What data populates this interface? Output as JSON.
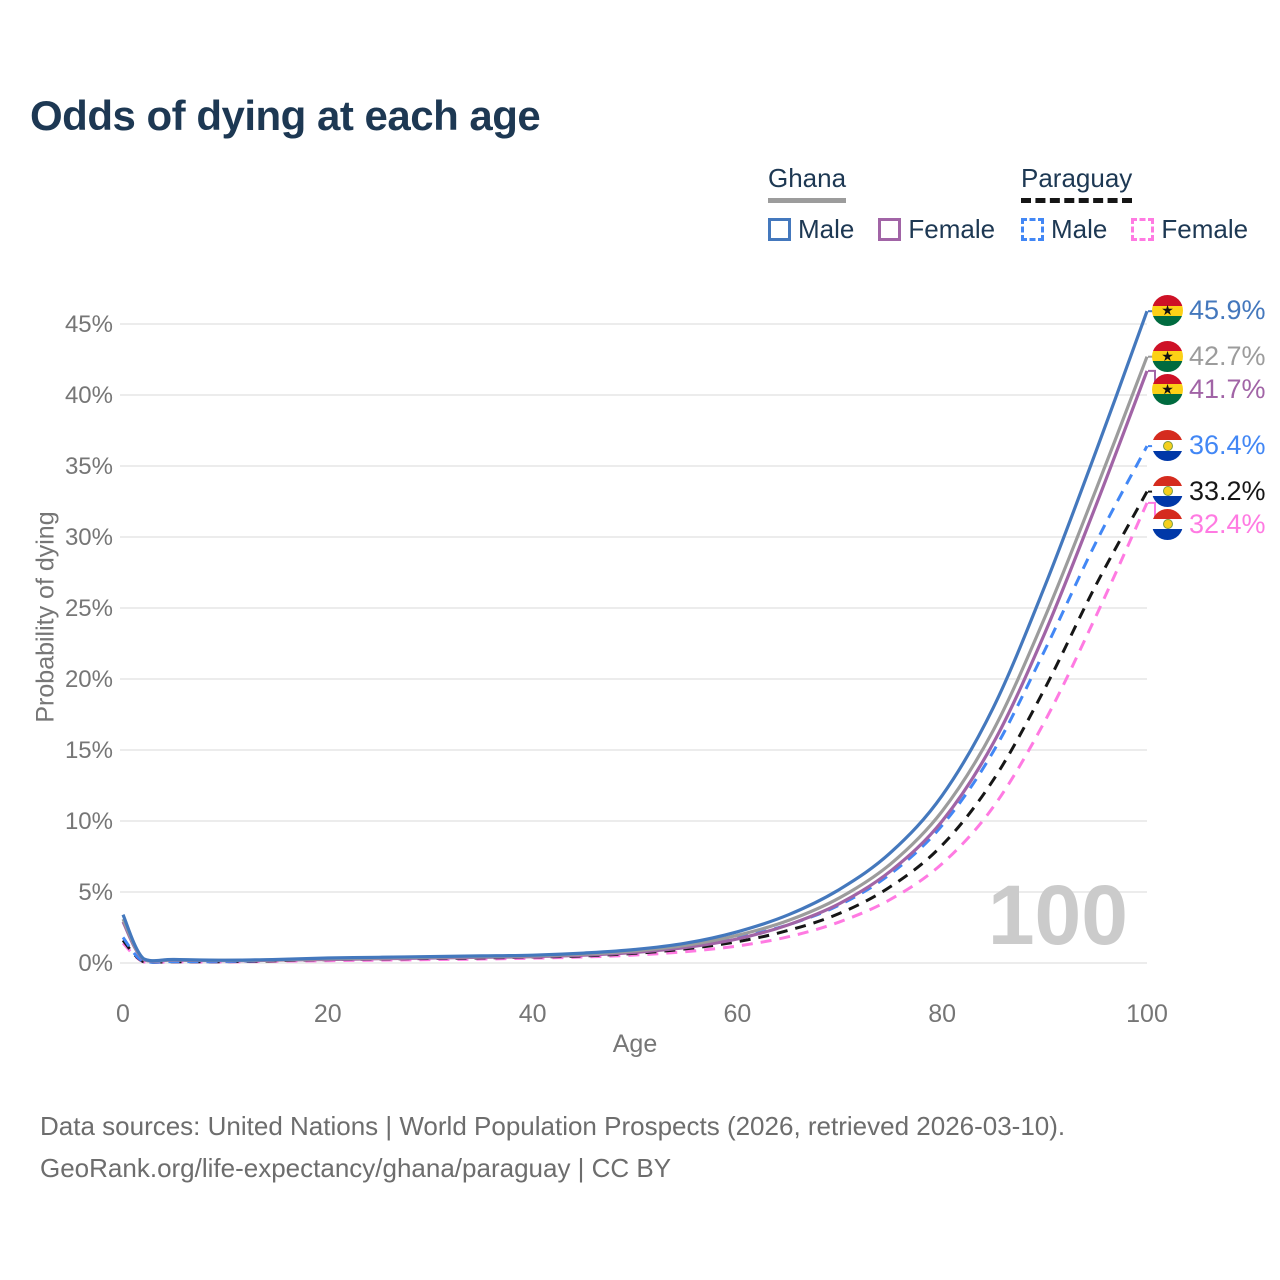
{
  "title": "Odds of dying at each age",
  "watermark": "100",
  "legend": {
    "groups": [
      {
        "country": "Ghana",
        "line_style": "solid",
        "line_color": "#9c9c9c",
        "items": [
          {
            "label": "Male",
            "color": "#4478bd",
            "dashed": false
          },
          {
            "label": "Female",
            "color": "#a164a6",
            "dashed": false
          }
        ]
      },
      {
        "country": "Paraguay",
        "line_style": "dashed",
        "line_color": "#161616",
        "items": [
          {
            "label": "Male",
            "color": "#4287f5",
            "dashed": true
          },
          {
            "label": "Female",
            "color": "#ff7ae2",
            "dashed": true
          }
        ]
      }
    ]
  },
  "axes": {
    "x_label": "Age",
    "y_label": "Probability of dying",
    "x_ticks": [
      "0",
      "20",
      "40",
      "60",
      "80",
      "100"
    ],
    "y_ticks": [
      "0%",
      "5%",
      "10%",
      "15%",
      "20%",
      "25%",
      "30%",
      "35%",
      "40%",
      "45%"
    ]
  },
  "footer": {
    "line1": "Data sources: United Nations | World Population Prospects (2026, retrieved 2026-03-10).",
    "line2": "GeoRank.org/life-expectancy/ghana/paraguay | CC BY"
  },
  "chart_data": {
    "type": "line",
    "title": "Odds of dying at each age",
    "xlabel": "Age",
    "ylabel": "Probability of dying",
    "xlim": [
      0,
      100
    ],
    "ylim": [
      0,
      46
    ],
    "grid": true,
    "legend_position": "top-right",
    "x": [
      0,
      2,
      5,
      10,
      15,
      20,
      25,
      30,
      35,
      40,
      45,
      50,
      55,
      60,
      65,
      70,
      75,
      80,
      85,
      90,
      95,
      100
    ],
    "series": [
      {
        "name": "Ghana Male",
        "country": "Ghana",
        "sex": "Male",
        "color": "#4478bd",
        "dash": "solid",
        "flag": "ghana",
        "end_label": "45.9%",
        "end_value": 45.9,
        "values": [
          3.4,
          0.3,
          0.25,
          0.2,
          0.25,
          0.35,
          0.4,
          0.45,
          0.5,
          0.55,
          0.7,
          0.95,
          1.4,
          2.2,
          3.4,
          5.2,
          7.8,
          11.8,
          18.0,
          26.5,
          36.0,
          45.9
        ]
      },
      {
        "name": "Ghana",
        "country": "Ghana",
        "sex": "Both",
        "color": "#9c9c9c",
        "dash": "solid",
        "flag": "ghana",
        "end_label": "42.7%",
        "end_value": 42.7,
        "values": [
          3.1,
          0.28,
          0.22,
          0.18,
          0.22,
          0.3,
          0.35,
          0.4,
          0.45,
          0.5,
          0.62,
          0.85,
          1.25,
          1.95,
          3.0,
          4.6,
          7.0,
          10.7,
          16.4,
          24.3,
          33.3,
          42.7
        ]
      },
      {
        "name": "Ghana Female",
        "country": "Ghana",
        "sex": "Female",
        "color": "#a164a6",
        "dash": "solid",
        "flag": "ghana",
        "end_label": "41.7%",
        "end_value": 41.7,
        "values": [
          2.9,
          0.25,
          0.2,
          0.16,
          0.2,
          0.25,
          0.3,
          0.35,
          0.4,
          0.45,
          0.55,
          0.75,
          1.1,
          1.7,
          2.7,
          4.2,
          6.5,
          10.0,
          15.5,
          23.2,
          32.2,
          41.7
        ]
      },
      {
        "name": "Paraguay Male",
        "country": "Paraguay",
        "sex": "Male",
        "color": "#4287f5",
        "dash": "dashed",
        "flag": "paraguay",
        "end_label": "36.4%",
        "end_value": 36.4,
        "values": [
          1.8,
          0.1,
          0.1,
          0.1,
          0.2,
          0.3,
          0.35,
          0.4,
          0.45,
          0.5,
          0.6,
          0.8,
          1.2,
          1.8,
          2.7,
          4.1,
          6.3,
          9.7,
          14.9,
          22.0,
          29.6,
          36.4
        ]
      },
      {
        "name": "Paraguay",
        "country": "Paraguay",
        "sex": "Both",
        "color": "#161616",
        "dash": "dashed",
        "flag": "paraguay",
        "end_label": "33.2%",
        "end_value": 33.2,
        "values": [
          1.6,
          0.09,
          0.09,
          0.09,
          0.16,
          0.24,
          0.28,
          0.32,
          0.36,
          0.42,
          0.5,
          0.68,
          1.0,
          1.5,
          2.3,
          3.5,
          5.4,
          8.3,
          12.9,
          19.3,
          26.6,
          33.2
        ]
      },
      {
        "name": "Paraguay Female",
        "country": "Paraguay",
        "sex": "Female",
        "color": "#ff7ae2",
        "dash": "dashed",
        "flag": "paraguay",
        "end_label": "32.4%",
        "end_value": 32.4,
        "values": [
          1.4,
          0.08,
          0.08,
          0.08,
          0.12,
          0.16,
          0.2,
          0.24,
          0.28,
          0.34,
          0.42,
          0.56,
          0.8,
          1.2,
          1.85,
          2.9,
          4.5,
          7.0,
          11.0,
          17.0,
          24.4,
          32.4
        ]
      }
    ]
  }
}
